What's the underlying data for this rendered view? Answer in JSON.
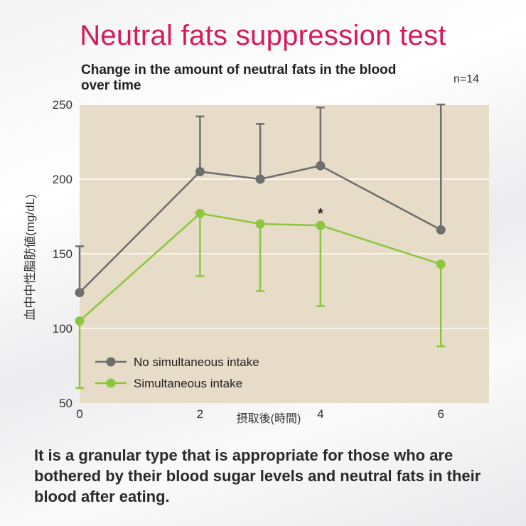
{
  "title": "Neutral fats suppression test",
  "subtitle": "Change in the amount of neutral fats in the blood over time",
  "n_label": "n=14",
  "footer": "It is a granular type that is appropriate for those who are bothered by their blood sugar levels and neutral fats in their blood after eating.",
  "colors": {
    "no_intake": "#6e6e6e",
    "intake": "#8cc63f",
    "plot_bg": "#e6dcc7",
    "title": "#d6195a"
  },
  "chart_data": {
    "type": "line",
    "ylabel": "血中中性脂肪値(mg/dL)",
    "xlabel": "摂取後(時間)",
    "x": [
      0,
      2,
      3,
      4,
      6
    ],
    "xticks": [
      0,
      2,
      4,
      6
    ],
    "yticks": [
      50,
      100,
      150,
      200,
      250
    ],
    "ylim": [
      50,
      250
    ],
    "xlim": [
      0,
      6.8
    ],
    "grid": true,
    "legend_position": "bottom-left",
    "annotation": "*",
    "annotation_x": 4,
    "series": [
      {
        "name": "No simultaneous intake",
        "values": [
          124,
          205,
          200,
          209,
          166
        ],
        "error_upper": [
          155,
          242,
          237,
          248,
          250
        ],
        "error_lower": [
          null,
          null,
          null,
          null,
          null
        ]
      },
      {
        "name": "Simultaneous intake",
        "values": [
          105,
          177,
          170,
          169,
          143
        ],
        "error_upper": [
          null,
          null,
          null,
          null,
          null
        ],
        "error_lower": [
          60,
          135,
          125,
          115,
          88
        ]
      }
    ]
  }
}
